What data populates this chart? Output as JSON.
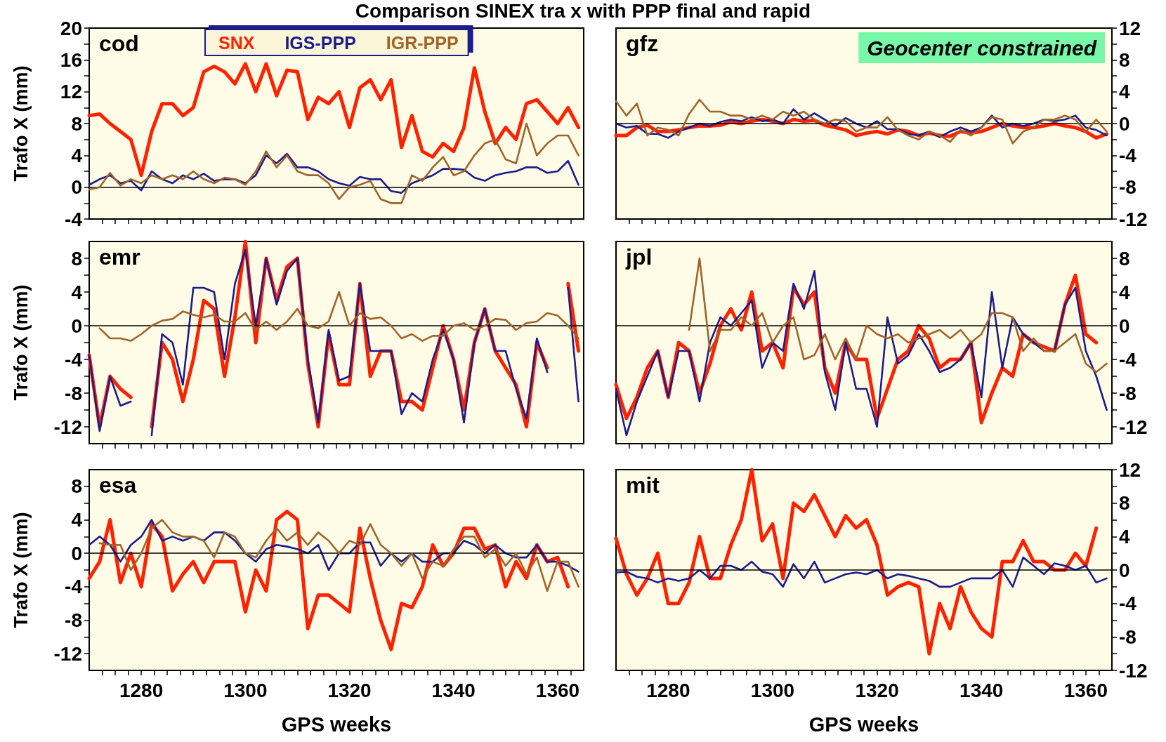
{
  "chart_data": [
    {
      "type": "line",
      "title": "Comparison SINEX tra x  with PPP final and rapid",
      "ylabel": "Trafo X (mm)",
      "annotations": [
        "cod"
      ],
      "legend": "top",
      "tick_labels": "y",
      "x": [
        1270,
        1272,
        1274,
        1276,
        1278,
        1280,
        1282,
        1284,
        1286,
        1288,
        1290,
        1292,
        1294,
        1296,
        1298,
        1300,
        1302,
        1304,
        1306,
        1308,
        1310,
        1312,
        1314,
        1316,
        1318,
        1320,
        1322,
        1324,
        1326,
        1328,
        1330,
        1332,
        1334,
        1336,
        1338,
        1340,
        1342,
        1344,
        1346,
        1348,
        1350,
        1352,
        1354,
        1356,
        1358,
        1360,
        1362,
        1364
      ],
      "xlim": [
        1270,
        1365
      ],
      "xticks": [
        {
          "value": 1272.5,
          "label": null
        },
        {
          "value": 1275,
          "label": null
        },
        {
          "value": 1277.5,
          "label": null
        },
        1280,
        {
          "value": 1282.5,
          "label": null
        },
        {
          "value": 1285,
          "label": null
        },
        {
          "value": 1287.5,
          "label": null
        },
        {
          "value": 1290,
          "label": null
        },
        {
          "value": 1292.5,
          "label": null
        },
        {
          "value": 1295,
          "label": null
        },
        {
          "value": 1297.5,
          "label": null
        },
        1300,
        {
          "value": 1302.5,
          "label": null
        },
        {
          "value": 1305,
          "label": null
        },
        {
          "value": 1307.5,
          "label": null
        },
        {
          "value": 1310,
          "label": null
        },
        {
          "value": 1312.5,
          "label": null
        },
        {
          "value": 1315,
          "label": null
        },
        {
          "value": 1317.5,
          "label": null
        },
        1320,
        {
          "value": 1322.5,
          "label": null
        },
        {
          "value": 1325,
          "label": null
        },
        {
          "value": 1327.5,
          "label": null
        },
        {
          "value": 1330,
          "label": null
        },
        {
          "value": 1332.5,
          "label": null
        },
        {
          "value": 1335,
          "label": null
        },
        {
          "value": 1337.5,
          "label": null
        },
        1340,
        {
          "value": 1342.5,
          "label": null
        },
        {
          "value": 1345,
          "label": null
        },
        {
          "value": 1347.5,
          "label": null
        },
        {
          "value": 1350,
          "label": null
        },
        {
          "value": 1352.5,
          "label": null
        },
        {
          "value": 1355,
          "label": null
        },
        {
          "value": 1357.5,
          "label": null
        },
        1360,
        {
          "value": 1362.5,
          "label": null
        }
      ],
      "ylim": [
        -4,
        20
      ],
      "yticks": [
        -4,
        {
          "value": -2,
          "label": null
        },
        0,
        {
          "value": 2,
          "label": null
        },
        4,
        {
          "value": 6,
          "label": null
        },
        8,
        {
          "value": 10,
          "label": null
        },
        12,
        {
          "value": 14,
          "label": null
        },
        16,
        {
          "value": 18,
          "label": null
        },
        20
      ],
      "ref_lines": [
        {
          "axis": "y",
          "value": 0,
          "color": "#000000"
        }
      ],
      "series": [
        {
          "name": "SNX",
          "color": "#ff2200",
          "values": [
            9,
            9.2,
            8,
            7,
            6,
            1.5,
            7,
            10.5,
            10.5,
            9,
            10,
            14.5,
            15.2,
            14.5,
            13,
            15.5,
            12,
            15.5,
            11.5,
            14.7,
            14.5,
            8.5,
            11.3,
            10.5,
            12,
            7.5,
            12.5,
            13.5,
            11,
            13.5,
            5,
            9,
            4.5,
            3.8,
            5.5,
            4.5,
            7.5,
            15,
            9.5,
            5.5,
            7.5,
            6,
            10.5,
            11,
            9.5,
            8,
            10,
            7.5
          ]
        },
        {
          "name": "IGS-PPP",
          "color": "#1c1c8c",
          "values": [
            0.3,
            1,
            1.5,
            0.5,
            0.8,
            -0.4,
            2,
            1,
            0.5,
            1.5,
            1,
            1.7,
            0.8,
            1,
            1,
            0.5,
            1.5,
            4,
            3,
            4.2,
            2.5,
            2.5,
            2,
            1,
            0.5,
            0.2,
            1.3,
            1,
            1,
            -0.5,
            -0.7,
            0.5,
            1,
            1.5,
            2.3,
            2.3,
            2.2,
            1.2,
            0.8,
            1.5,
            1.8,
            2,
            2.5,
            2.5,
            1.8,
            2,
            3.3,
            0.3
          ]
        },
        {
          "name": "IGR-PPP",
          "color": "#a0642a",
          "values": [
            -0.3,
            0,
            1.8,
            0.2,
            1,
            0.5,
            1.5,
            1,
            1.5,
            1,
            2,
            1,
            0.5,
            1.2,
            1,
            0.3,
            2,
            4.5,
            2.5,
            4,
            2,
            1.5,
            1.5,
            0.5,
            -1.5,
            0,
            0.3,
            0.8,
            -1.5,
            -2,
            -2,
            1.5,
            0.8,
            2.5,
            3.8,
            1.5,
            2,
            4,
            5.5,
            6,
            3.5,
            3,
            8,
            4,
            5.5,
            6.5,
            6.5,
            4
          ]
        }
      ]
    },
    {
      "type": "line",
      "annotations": [
        "gfz",
        "Geocenter constrained"
      ],
      "tick_labels": "y",
      "x": [
        1270,
        1272,
        1274,
        1276,
        1278,
        1280,
        1282,
        1284,
        1286,
        1288,
        1290,
        1292,
        1294,
        1296,
        1298,
        1300,
        1302,
        1304,
        1306,
        1308,
        1310,
        1312,
        1314,
        1316,
        1318,
        1320,
        1322,
        1324,
        1326,
        1328,
        1330,
        1332,
        1334,
        1336,
        1338,
        1340,
        1342,
        1344,
        1346,
        1348,
        1350,
        1352,
        1354,
        1356,
        1358,
        1360,
        1362,
        1364
      ],
      "xlim": [
        1270,
        1365
      ],
      "xticks": [
        {
          "value": 1272.5,
          "label": null
        },
        {
          "value": 1275,
          "label": null
        },
        {
          "value": 1277.5,
          "label": null
        },
        1280,
        {
          "value": 1282.5,
          "label": null
        },
        {
          "value": 1285,
          "label": null
        },
        {
          "value": 1287.5,
          "label": null
        },
        {
          "value": 1290,
          "label": null
        },
        {
          "value": 1292.5,
          "label": null
        },
        {
          "value": 1295,
          "label": null
        },
        {
          "value": 1297.5,
          "label": null
        },
        1300,
        {
          "value": 1302.5,
          "label": null
        },
        {
          "value": 1305,
          "label": null
        },
        {
          "value": 1307.5,
          "label": null
        },
        {
          "value": 1310,
          "label": null
        },
        {
          "value": 1312.5,
          "label": null
        },
        {
          "value": 1315,
          "label": null
        },
        {
          "value": 1317.5,
          "label": null
        },
        1320,
        {
          "value": 1322.5,
          "label": null
        },
        {
          "value": 1325,
          "label": null
        },
        {
          "value": 1327.5,
          "label": null
        },
        {
          "value": 1330,
          "label": null
        },
        {
          "value": 1332.5,
          "label": null
        },
        {
          "value": 1335,
          "label": null
        },
        {
          "value": 1337.5,
          "label": null
        },
        1340,
        {
          "value": 1342.5,
          "label": null
        },
        {
          "value": 1345,
          "label": null
        },
        {
          "value": 1347.5,
          "label": null
        },
        {
          "value": 1350,
          "label": null
        },
        {
          "value": 1352.5,
          "label": null
        },
        {
          "value": 1355,
          "label": null
        },
        {
          "value": 1357.5,
          "label": null
        },
        1360,
        {
          "value": 1362.5,
          "label": null
        }
      ],
      "ylim": [
        -12,
        12
      ],
      "yticks": [
        -12,
        {
          "value": -10,
          "label": null
        },
        -8,
        {
          "value": -6,
          "label": null
        },
        -4,
        {
          "value": -2,
          "label": null
        },
        0,
        {
          "value": 2,
          "label": null
        },
        4,
        {
          "value": 6,
          "label": null
        },
        8,
        {
          "value": 10,
          "label": null
        },
        12
      ],
      "ref_lines": [
        {
          "axis": "y",
          "value": 0,
          "color": "#000000"
        }
      ],
      "series": [
        {
          "color": "#ff2200",
          "values": [
            -1.5,
            -1.5,
            -0.5,
            -0.2,
            -1,
            -1,
            -0.8,
            -0.5,
            -0.3,
            -0.3,
            -0.2,
            0.2,
            0,
            0.3,
            0.5,
            0.3,
            0,
            0.5,
            0.3,
            0.4,
            -0.2,
            -0.5,
            -0.8,
            -1.5,
            -1.2,
            -1,
            -1.3,
            -0.8,
            -1,
            -1.5,
            -1.2,
            -1.5,
            -1.6,
            -1,
            -1.2,
            -1,
            -0.5,
            0,
            -0.3,
            -0.5,
            -0.5,
            -0.3,
            0,
            -0.3,
            -0.5,
            -1,
            -1.8,
            -1.3
          ]
        },
        {
          "color": "#1c1c8c",
          "values": [
            0,
            -0.5,
            -0.3,
            -1.3,
            -1.3,
            -1.8,
            -1,
            -0.5,
            0,
            -0.3,
            0.2,
            0.5,
            0.3,
            0.8,
            0.3,
            0.5,
            0,
            1.8,
            0.5,
            1.3,
            0.5,
            -0.3,
            0.7,
            0,
            -0.5,
            0.3,
            -0.7,
            -0.7,
            -1.3,
            -1.5,
            -1,
            -1.7,
            -1,
            -0.5,
            -1,
            -0.5,
            1,
            -0.5,
            0,
            -0.3,
            0,
            0.5,
            0.3,
            0.5,
            1,
            -0.5,
            -0.8,
            -1.5
          ]
        },
        {
          "color": "#a0642a",
          "values": [
            2.8,
            1,
            2.5,
            -1.5,
            -0.5,
            -0.8,
            -1.5,
            1.2,
            3,
            1.5,
            1.5,
            1,
            1,
            0.5,
            1,
            0.5,
            1.5,
            1,
            1.5,
            0.5,
            0,
            0.5,
            0.3,
            -1,
            -0.5,
            -0.5,
            0.8,
            -0.8,
            -1.5,
            -2,
            -1,
            -1.5,
            -2.3,
            -0.8,
            -1.5,
            -0.5,
            0.8,
            0.5,
            -2.5,
            -1,
            -0.5,
            0.5,
            0.5,
            1,
            0.5,
            -1,
            0.5,
            -1
          ]
        }
      ]
    },
    {
      "type": "line",
      "ylabel": "Trafo X (mm)",
      "annotations": [
        "emr"
      ],
      "tick_labels": "y",
      "x": [
        1270,
        1272,
        1274,
        1276,
        1278,
        1280,
        1282,
        1284,
        1286,
        1288,
        1290,
        1292,
        1294,
        1296,
        1298,
        1300,
        1302,
        1304,
        1306,
        1308,
        1310,
        1312,
        1314,
        1316,
        1318,
        1320,
        1322,
        1324,
        1326,
        1328,
        1330,
        1332,
        1334,
        1336,
        1338,
        1340,
        1342,
        1344,
        1346,
        1348,
        1350,
        1352,
        1354,
        1356,
        1358,
        1360,
        1362,
        1364
      ],
      "xlim": [
        1270,
        1365
      ],
      "xticks": [
        {
          "value": 1272.5,
          "label": null
        },
        {
          "value": 1275,
          "label": null
        },
        {
          "value": 1277.5,
          "label": null
        },
        1280,
        {
          "value": 1282.5,
          "label": null
        },
        {
          "value": 1285,
          "label": null
        },
        {
          "value": 1287.5,
          "label": null
        },
        {
          "value": 1290,
          "label": null
        },
        {
          "value": 1292.5,
          "label": null
        },
        {
          "value": 1295,
          "label": null
        },
        {
          "value": 1297.5,
          "label": null
        },
        1300,
        {
          "value": 1302.5,
          "label": null
        },
        {
          "value": 1305,
          "label": null
        },
        {
          "value": 1307.5,
          "label": null
        },
        {
          "value": 1310,
          "label": null
        },
        {
          "value": 1312.5,
          "label": null
        },
        {
          "value": 1315,
          "label": null
        },
        {
          "value": 1317.5,
          "label": null
        },
        1320,
        {
          "value": 1322.5,
          "label": null
        },
        {
          "value": 1325,
          "label": null
        },
        {
          "value": 1327.5,
          "label": null
        },
        {
          "value": 1330,
          "label": null
        },
        {
          "value": 1332.5,
          "label": null
        },
        {
          "value": 1335,
          "label": null
        },
        {
          "value": 1337.5,
          "label": null
        },
        1340,
        {
          "value": 1342.5,
          "label": null
        },
        {
          "value": 1345,
          "label": null
        },
        {
          "value": 1347.5,
          "label": null
        },
        {
          "value": 1350,
          "label": null
        },
        {
          "value": 1352.5,
          "label": null
        },
        {
          "value": 1355,
          "label": null
        },
        {
          "value": 1357.5,
          "label": null
        },
        1360,
        {
          "value": 1362.5,
          "label": null
        }
      ],
      "ylim": [
        -14,
        10
      ],
      "yticks": [
        -12,
        {
          "value": -10,
          "label": null
        },
        -8,
        {
          "value": -6,
          "label": null
        },
        -4,
        {
          "value": -2,
          "label": null
        },
        0,
        {
          "value": 2,
          "label": null
        },
        4,
        {
          "value": 6,
          "label": null
        },
        8
      ],
      "ref_lines": [
        {
          "axis": "y",
          "value": 0,
          "color": "#000000"
        }
      ],
      "series": [
        {
          "color": "#ff2200",
          "values": [
            -3.5,
            -12,
            -6,
            -7.5,
            -8.5,
            null,
            -12,
            -2,
            -4,
            -9,
            -4,
            3,
            2,
            -6,
            1,
            10,
            -2,
            8,
            3,
            7,
            8,
            -4.5,
            -12,
            -1,
            -7,
            -7,
            5,
            -6,
            -3,
            -3,
            -9,
            -9,
            -10,
            -5,
            0,
            -4,
            -10,
            -2,
            2,
            -3,
            -5,
            -7,
            -12,
            -2,
            -5,
            null,
            5,
            -3
          ]
        },
        {
          "color": "#1c1c8c",
          "values": [
            -3.5,
            -12.5,
            -6,
            -9.5,
            -9,
            null,
            -13,
            -1,
            -2,
            -7,
            4.5,
            4.5,
            4,
            -4,
            5,
            9,
            0,
            8,
            2.5,
            6.5,
            8,
            -4,
            -11.5,
            -0.5,
            -6.5,
            -6,
            5,
            -3,
            -3,
            -3,
            -10.5,
            -8,
            -9,
            -4,
            -0.5,
            -4,
            -11.5,
            -2,
            2,
            -3,
            -3,
            -7.5,
            -11,
            -1.5,
            -5.5,
            null,
            4.5,
            -9
          ]
        },
        {
          "color": "#a0642a",
          "values": [
            null,
            -0.3,
            -1.5,
            -1.5,
            -1.8,
            -1,
            0,
            0.6,
            0.8,
            1.7,
            1.3,
            1,
            1.3,
            0.5,
            0.5,
            1.5,
            -0.5,
            0.5,
            -0.5,
            0.5,
            2,
            0,
            -0.3,
            0.5,
            4,
            0,
            1.5,
            0.8,
            1,
            0,
            -1.5,
            -1,
            -1.8,
            -1.2,
            -1.2,
            0,
            0.3,
            -0.5,
            0,
            0.8,
            0.7,
            -0.5,
            0.3,
            0.5,
            1.5,
            1.2,
            0,
            -1.5
          ]
        }
      ]
    },
    {
      "type": "line",
      "annotations": [
        "jpl"
      ],
      "tick_labels": "y",
      "x": [
        1270,
        1272,
        1274,
        1276,
        1278,
        1280,
        1282,
        1284,
        1286,
        1288,
        1290,
        1292,
        1294,
        1296,
        1298,
        1300,
        1302,
        1304,
        1306,
        1308,
        1310,
        1312,
        1314,
        1316,
        1318,
        1320,
        1322,
        1324,
        1326,
        1328,
        1330,
        1332,
        1334,
        1336,
        1338,
        1340,
        1342,
        1344,
        1346,
        1348,
        1350,
        1352,
        1354,
        1356,
        1358,
        1360,
        1362,
        1364
      ],
      "xlim": [
        1270,
        1365
      ],
      "xticks": [
        {
          "value": 1272.5,
          "label": null
        },
        {
          "value": 1275,
          "label": null
        },
        {
          "value": 1277.5,
          "label": null
        },
        1280,
        {
          "value": 1282.5,
          "label": null
        },
        {
          "value": 1285,
          "label": null
        },
        {
          "value": 1287.5,
          "label": null
        },
        {
          "value": 1290,
          "label": null
        },
        {
          "value": 1292.5,
          "label": null
        },
        {
          "value": 1295,
          "label": null
        },
        {
          "value": 1297.5,
          "label": null
        },
        1300,
        {
          "value": 1302.5,
          "label": null
        },
        {
          "value": 1305,
          "label": null
        },
        {
          "value": 1307.5,
          "label": null
        },
        {
          "value": 1310,
          "label": null
        },
        {
          "value": 1312.5,
          "label": null
        },
        {
          "value": 1315,
          "label": null
        },
        {
          "value": 1317.5,
          "label": null
        },
        1320,
        {
          "value": 1322.5,
          "label": null
        },
        {
          "value": 1325,
          "label": null
        },
        {
          "value": 1327.5,
          "label": null
        },
        {
          "value": 1330,
          "label": null
        },
        {
          "value": 1332.5,
          "label": null
        },
        {
          "value": 1335,
          "label": null
        },
        {
          "value": 1337.5,
          "label": null
        },
        1340,
        {
          "value": 1342.5,
          "label": null
        },
        {
          "value": 1345,
          "label": null
        },
        {
          "value": 1347.5,
          "label": null
        },
        {
          "value": 1350,
          "label": null
        },
        {
          "value": 1352.5,
          "label": null
        },
        {
          "value": 1355,
          "label": null
        },
        {
          "value": 1357.5,
          "label": null
        },
        1360,
        {
          "value": 1362.5,
          "label": null
        }
      ],
      "ylim": [
        -14,
        10
      ],
      "yticks": [
        -12,
        {
          "value": -10,
          "label": null
        },
        -8,
        {
          "value": -6,
          "label": null
        },
        -4,
        {
          "value": -2,
          "label": null
        },
        0,
        {
          "value": 2,
          "label": null
        },
        4,
        {
          "value": 6,
          "label": null
        },
        8
      ],
      "ref_lines": [
        {
          "axis": "y",
          "value": 0,
          "color": "#000000"
        }
      ],
      "series": [
        {
          "color": "#ff2200",
          "values": [
            -7,
            -11,
            -8.5,
            -5,
            -3,
            -8.5,
            -2,
            -3,
            -8,
            -4.5,
            0,
            2,
            -0.5,
            4,
            -3,
            -2,
            -5,
            4.5,
            2.5,
            4,
            -5,
            -8,
            -2,
            -4,
            -4,
            -11,
            -7.5,
            -4,
            -3,
            0,
            -1.5,
            -5,
            -4,
            -4,
            -2,
            -11.5,
            -8,
            -5,
            -6,
            -1,
            -2,
            -2.5,
            -3,
            2.5,
            6,
            -1,
            -2,
            null
          ]
        },
        {
          "color": "#1c1c8c",
          "values": [
            -7.5,
            -13,
            -9,
            -6,
            -3,
            -8.5,
            -3,
            -3,
            -9,
            -2,
            1,
            0,
            1.5,
            3,
            -5,
            -2,
            -3,
            5,
            2,
            6.5,
            -5.5,
            -10,
            -2,
            -7.5,
            -7.5,
            -12,
            1,
            -4.5,
            -3.5,
            -1,
            -3,
            -5.5,
            -5,
            -4,
            -2,
            -8.5,
            4,
            -5,
            1,
            -1,
            -2,
            -3,
            -3,
            2.5,
            4.5,
            -3,
            -6,
            -10
          ]
        },
        {
          "color": "#a0642a",
          "values": [
            null,
            null,
            null,
            null,
            null,
            null,
            null,
            -0.5,
            8,
            -3,
            -0.5,
            -0.5,
            1,
            0,
            1.5,
            -2,
            0,
            1,
            -4,
            -3.5,
            -1,
            -4,
            -1.5,
            -4,
            0,
            -1,
            -1.5,
            -1,
            -2,
            -1.5,
            -1,
            -0.5,
            -1.5,
            -0.5,
            -2,
            -1,
            1.5,
            1.5,
            1,
            -3,
            -1.5,
            -3,
            -3,
            -2,
            -1,
            -4.5,
            -5.5,
            -4.5
          ]
        }
      ]
    },
    {
      "type": "line",
      "ylabel": "Trafo X (mm)",
      "xlabel": "GPS weeks",
      "annotations": [
        "esa"
      ],
      "x": [
        1270,
        1272,
        1274,
        1276,
        1278,
        1280,
        1282,
        1284,
        1286,
        1288,
        1290,
        1292,
        1294,
        1296,
        1298,
        1300,
        1302,
        1304,
        1306,
        1308,
        1310,
        1312,
        1314,
        1316,
        1318,
        1320,
        1322,
        1324,
        1326,
        1328,
        1330,
        1332,
        1334,
        1336,
        1338,
        1340,
        1342,
        1344,
        1346,
        1348,
        1350,
        1352,
        1354,
        1356,
        1358,
        1360,
        1362,
        1364
      ],
      "xlim": [
        1270,
        1365
      ],
      "xticks": [
        {
          "value": 1272.5,
          "label": null
        },
        {
          "value": 1275,
          "label": null
        },
        {
          "value": 1277.5,
          "label": null
        },
        1280,
        {
          "value": 1282.5,
          "label": null
        },
        {
          "value": 1285,
          "label": null
        },
        {
          "value": 1287.5,
          "label": null
        },
        {
          "value": 1290,
          "label": null
        },
        {
          "value": 1292.5,
          "label": null
        },
        {
          "value": 1295,
          "label": null
        },
        {
          "value": 1297.5,
          "label": null
        },
        1300,
        {
          "value": 1302.5,
          "label": null
        },
        {
          "value": 1305,
          "label": null
        },
        {
          "value": 1307.5,
          "label": null
        },
        {
          "value": 1310,
          "label": null
        },
        {
          "value": 1312.5,
          "label": null
        },
        {
          "value": 1315,
          "label": null
        },
        {
          "value": 1317.5,
          "label": null
        },
        1320,
        {
          "value": 1322.5,
          "label": null
        },
        {
          "value": 1325,
          "label": null
        },
        {
          "value": 1327.5,
          "label": null
        },
        {
          "value": 1330,
          "label": null
        },
        {
          "value": 1332.5,
          "label": null
        },
        {
          "value": 1335,
          "label": null
        },
        {
          "value": 1337.5,
          "label": null
        },
        1340,
        {
          "value": 1342.5,
          "label": null
        },
        {
          "value": 1345,
          "label": null
        },
        {
          "value": 1347.5,
          "label": null
        },
        {
          "value": 1350,
          "label": null
        },
        {
          "value": 1352.5,
          "label": null
        },
        {
          "value": 1355,
          "label": null
        },
        {
          "value": 1357.5,
          "label": null
        },
        1360,
        {
          "value": 1362.5,
          "label": null
        }
      ],
      "ylim": [
        -14,
        10
      ],
      "yticks": [
        -12,
        {
          "value": -10,
          "label": null
        },
        -8,
        {
          "value": -6,
          "label": null
        },
        -4,
        {
          "value": -2,
          "label": null
        },
        0,
        {
          "value": 2,
          "label": null
        },
        4,
        {
          "value": 6,
          "label": null
        },
        8
      ],
      "ref_lines": [
        {
          "axis": "y",
          "value": 0,
          "color": "#000000"
        }
      ],
      "series": [
        {
          "color": "#ff2200",
          "values": [
            -3,
            -1,
            4,
            -3.5,
            0,
            -4,
            3.5,
            2,
            -4.5,
            -2.5,
            -1,
            -3.5,
            -1,
            -1,
            -1,
            -7,
            -2,
            -4.5,
            4,
            5,
            4,
            -9,
            -5,
            -5,
            -6,
            -7,
            3,
            -3,
            -8,
            -11.5,
            -6,
            -6.5,
            -4,
            1,
            -1.5,
            0,
            3,
            3,
            0.5,
            1,
            -4,
            -1,
            -3,
            1,
            -1,
            -0.5,
            -4,
            null
          ]
        },
        {
          "color": "#1c1c8c",
          "values": [
            1,
            2,
            1,
            -1,
            1,
            2,
            4,
            1.5,
            2,
            1.5,
            2,
            1.5,
            2.5,
            2.5,
            1.5,
            0,
            -1,
            0.5,
            1,
            0.8,
            0.5,
            0,
            1,
            -2,
            0,
            0,
            1.3,
            1.3,
            -1.5,
            0,
            -1,
            0,
            -1,
            -1,
            0,
            0,
            1.5,
            1,
            0,
            1,
            0,
            -0.5,
            -0.5,
            1,
            -1,
            -1,
            -1.5,
            -2.2
          ]
        },
        {
          "color": "#a0642a",
          "values": [
            null,
            1.2,
            1,
            1,
            -2,
            0,
            3,
            4,
            2.5,
            2,
            2,
            1.5,
            -0.5,
            2.5,
            2,
            0,
            -0.5,
            1.5,
            3,
            1.5,
            2.5,
            1,
            2.5,
            1.5,
            0,
            1.5,
            1,
            3.5,
            1,
            0,
            -1.5,
            0,
            -3,
            -1,
            -1.5,
            0.5,
            2,
            2,
            -0.5,
            0.5,
            -1.5,
            0,
            -2.5,
            -0.5,
            -4.5,
            -1,
            -1,
            -4
          ]
        }
      ]
    },
    {
      "type": "line",
      "xlabel": "GPS weeks",
      "annotations": [
        "mit"
      ],
      "x": [
        1270,
        1272,
        1274,
        1276,
        1278,
        1280,
        1282,
        1284,
        1286,
        1288,
        1290,
        1292,
        1294,
        1296,
        1298,
        1300,
        1302,
        1304,
        1306,
        1308,
        1310,
        1312,
        1314,
        1316,
        1318,
        1320,
        1322,
        1324,
        1326,
        1328,
        1330,
        1332,
        1334,
        1336,
        1338,
        1340,
        1342,
        1344,
        1346,
        1348,
        1350,
        1352,
        1354,
        1356,
        1358,
        1360,
        1362,
        1364
      ],
      "xlim": [
        1270,
        1365
      ],
      "xticks": [
        {
          "value": 1272.5,
          "label": null
        },
        {
          "value": 1275,
          "label": null
        },
        {
          "value": 1277.5,
          "label": null
        },
        1280,
        {
          "value": 1282.5,
          "label": null
        },
        {
          "value": 1285,
          "label": null
        },
        {
          "value": 1287.5,
          "label": null
        },
        {
          "value": 1290,
          "label": null
        },
        {
          "value": 1292.5,
          "label": null
        },
        {
          "value": 1295,
          "label": null
        },
        {
          "value": 1297.5,
          "label": null
        },
        1300,
        {
          "value": 1302.5,
          "label": null
        },
        {
          "value": 1305,
          "label": null
        },
        {
          "value": 1307.5,
          "label": null
        },
        {
          "value": 1310,
          "label": null
        },
        {
          "value": 1312.5,
          "label": null
        },
        {
          "value": 1315,
          "label": null
        },
        {
          "value": 1317.5,
          "label": null
        },
        1320,
        {
          "value": 1322.5,
          "label": null
        },
        {
          "value": 1325,
          "label": null
        },
        {
          "value": 1327.5,
          "label": null
        },
        {
          "value": 1330,
          "label": null
        },
        {
          "value": 1332.5,
          "label": null
        },
        {
          "value": 1335,
          "label": null
        },
        {
          "value": 1337.5,
          "label": null
        },
        1340,
        {
          "value": 1342.5,
          "label": null
        },
        {
          "value": 1345,
          "label": null
        },
        {
          "value": 1347.5,
          "label": null
        },
        {
          "value": 1350,
          "label": null
        },
        {
          "value": 1352.5,
          "label": null
        },
        {
          "value": 1355,
          "label": null
        },
        {
          "value": 1357.5,
          "label": null
        },
        1360,
        {
          "value": 1362.5,
          "label": null
        }
      ],
      "ylim": [
        -12,
        12
      ],
      "yticks": [
        -12,
        {
          "value": -10,
          "label": null
        },
        -8,
        {
          "value": -6,
          "label": null
        },
        -4,
        {
          "value": -2,
          "label": null
        },
        0,
        {
          "value": 2,
          "label": null
        },
        4,
        {
          "value": 6,
          "label": null
        },
        8,
        {
          "value": 10,
          "label": null
        },
        12
      ],
      "ref_lines": [
        {
          "axis": "y",
          "value": 0,
          "color": "#000000"
        }
      ],
      "series": [
        {
          "color": "#ff2200",
          "values": [
            3.8,
            -0.5,
            -3,
            -1,
            2,
            -4,
            -4,
            -1.5,
            4,
            -1,
            -1,
            3,
            6,
            12,
            3.5,
            5.5,
            -1,
            8,
            7,
            9,
            6.5,
            4,
            6.5,
            5,
            6,
            3,
            -3,
            -2,
            -1.5,
            -2,
            -10,
            -4,
            -7,
            -2,
            -5,
            -7,
            -8,
            1,
            1,
            3.5,
            1,
            1,
            0,
            0,
            2,
            0.5,
            5,
            null
          ]
        },
        {
          "color": "#1c1c8c",
          "values": [
            -0.3,
            -0.2,
            -0.8,
            -1,
            -1.5,
            -1,
            -1.3,
            -1,
            0,
            -1,
            0.5,
            0.5,
            0,
            1,
            -0.2,
            -0.5,
            -2,
            0.7,
            -1,
            1,
            -1.5,
            -1,
            -0.5,
            -0.3,
            -0.5,
            0,
            -1,
            -0.5,
            -0.7,
            -1,
            -1.3,
            -2,
            -2,
            -1.5,
            -1,
            -1,
            -1,
            0,
            -2,
            1.5,
            0.5,
            -0.5,
            0.8,
            0.5,
            0,
            0.5,
            -1.5,
            -1
          ]
        }
      ]
    }
  ]
}
